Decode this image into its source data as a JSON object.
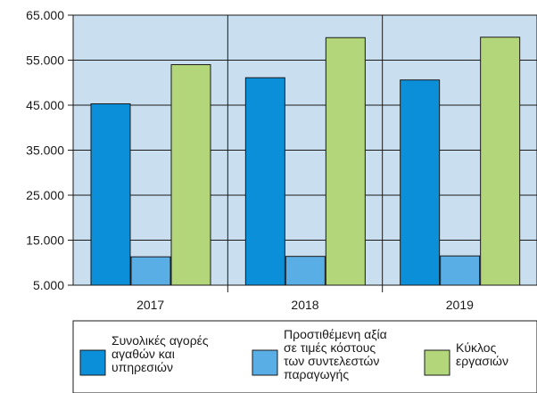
{
  "chart_data": {
    "type": "bar",
    "categories": [
      "2017",
      "2018",
      "2019"
    ],
    "series": [
      {
        "name": "Συνολικές αγορές αγαθών και υπηρεσιών",
        "legend_lines": [
          "Συνολικές αγορές",
          "αγαθών και",
          "υπηρεσιών"
        ],
        "values": [
          45300,
          51100,
          50600
        ],
        "color": "#0b8fd8"
      },
      {
        "name": "Προστιθέμενη αξία σε τιμές κόστους των συντελεστών παραγωγής",
        "legend_lines": [
          "Προστιθέμενη αξία",
          "σε τιμές κόστους",
          "των συντελεστών",
          "παραγωγής"
        ],
        "values": [
          11300,
          11400,
          11500
        ],
        "color": "#5aaee6"
      },
      {
        "name": "Κύκλος εργασιών",
        "legend_lines": [
          "Κύκλος",
          "εργασιών"
        ],
        "values": [
          54000,
          60000,
          60100
        ],
        "color": "#b4d67a"
      }
    ],
    "yticks": [
      "65.000",
      "55.000",
      "45.000",
      "35.000",
      "25.000",
      "15.000",
      "5.000"
    ],
    "ylim": [
      5000,
      65000
    ],
    "grid": true,
    "legend": "bottom",
    "title": "",
    "xlabel": "",
    "ylabel": "",
    "plot_background": "#c9dff0"
  }
}
